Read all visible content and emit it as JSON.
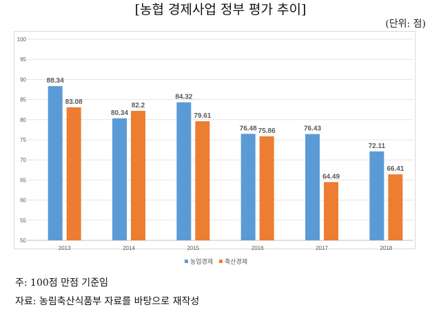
{
  "title": "[농협 경제사업 정부 평가 추이]",
  "unit": "(단위: 점)",
  "notes": [
    "주: 100점 만점 기준임",
    "자료: 농림축산식품부 자료를 바탕으로 재작성"
  ],
  "chart_data": {
    "type": "bar",
    "categories": [
      "2013",
      "2014",
      "2015",
      "2016",
      "2017",
      "2018"
    ],
    "series": [
      {
        "name": "농업경제",
        "color": "#5b9bd5",
        "values": [
          88.34,
          80.34,
          84.32,
          76.48,
          76.43,
          72.11
        ]
      },
      {
        "name": "축산경제",
        "color": "#ed7d31",
        "values": [
          83.08,
          82.2,
          79.61,
          75.86,
          64.49,
          66.41
        ]
      }
    ],
    "value_labels": [
      [
        "88.34",
        "80.34",
        "84.32",
        "76.48",
        "76.43",
        "72.11"
      ],
      [
        "83.08",
        "82.2",
        "79.61",
        "75.86",
        "64.49",
        "66.41"
      ]
    ],
    "ylim": [
      50,
      100
    ],
    "yticks": [
      50,
      55,
      60,
      65,
      70,
      75,
      80,
      85,
      90,
      95,
      100
    ],
    "grid": true,
    "legend": "bottom"
  }
}
